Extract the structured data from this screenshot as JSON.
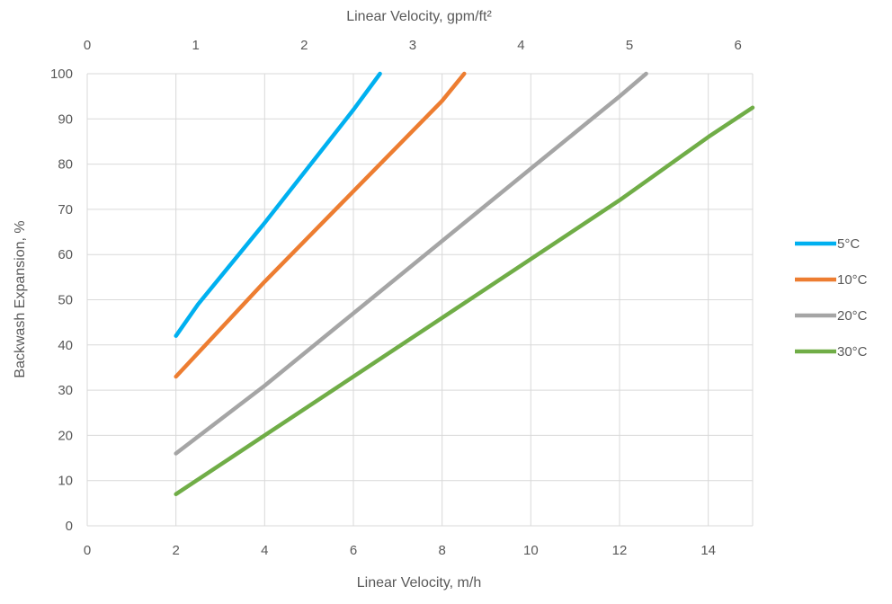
{
  "chart_data": {
    "type": "line",
    "title": "",
    "xlabel": "Linear Velocity, m/h",
    "x2label": "Linear Velocity, gpm/ft²",
    "ylabel": "Backwash Expansion, %",
    "xlim": [
      0,
      15
    ],
    "ylim": [
      0,
      100
    ],
    "x_ticks": [
      "0",
      "2",
      "4",
      "6",
      "8",
      "10",
      "12",
      "14"
    ],
    "x_tick_values": [
      0,
      2,
      4,
      6,
      8,
      10,
      12,
      14
    ],
    "y_ticks": [
      "0",
      "10",
      "20",
      "30",
      "40",
      "50",
      "60",
      "70",
      "80",
      "90",
      "100"
    ],
    "y_tick_values": [
      0,
      10,
      20,
      30,
      40,
      50,
      60,
      70,
      80,
      90,
      100
    ],
    "x2_ticks": [
      "0",
      "1",
      "2",
      "3",
      "4",
      "5",
      "6"
    ],
    "x2_tick_values": [
      0,
      1,
      2,
      3,
      4,
      5,
      6
    ],
    "grid": true,
    "legend_position": "right",
    "series": [
      {
        "name": "5°C",
        "color": "#00B0F0",
        "x": [
          2,
          2.5,
          4,
          6,
          6.6
        ],
        "y": [
          42,
          49,
          67,
          92,
          100
        ]
      },
      {
        "name": "10°C",
        "color": "#ED7D31",
        "x": [
          2,
          4,
          6,
          8,
          8.5
        ],
        "y": [
          33,
          54,
          74,
          94,
          100
        ]
      },
      {
        "name": "20°C",
        "color": "#A5A5A5",
        "x": [
          2,
          4,
          6,
          8,
          10,
          12,
          12.6
        ],
        "y": [
          16,
          31,
          47,
          63,
          79,
          95,
          100
        ]
      },
      {
        "name": "30°C",
        "color": "#70AD47",
        "x": [
          2,
          4,
          6,
          8,
          10,
          12,
          14,
          15
        ],
        "y": [
          7,
          20,
          33,
          46,
          59,
          72,
          86,
          92.5
        ]
      }
    ]
  }
}
